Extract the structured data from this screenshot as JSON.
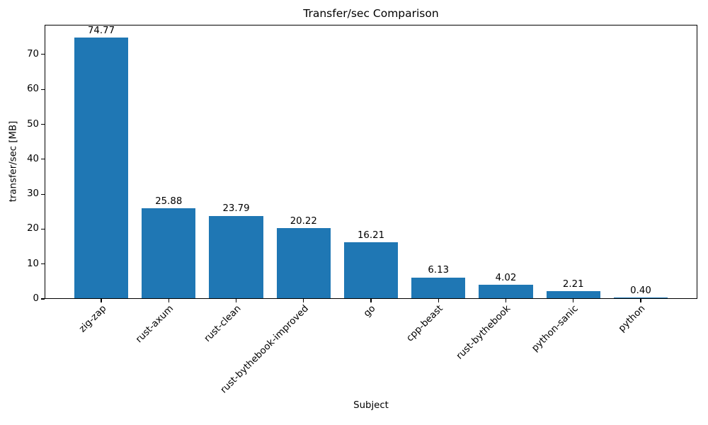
{
  "chart_data": {
    "type": "bar",
    "title": "Transfer/sec Comparison",
    "xlabel": "Subject",
    "ylabel": "transfer/sec [MB]",
    "categories": [
      "zig-zap",
      "rust-axum",
      "rust-clean",
      "rust-bythebook-improved",
      "go",
      "cpp-beast",
      "rust-bythebook",
      "python-sanic",
      "python"
    ],
    "values": [
      74.77,
      25.88,
      23.79,
      20.22,
      16.21,
      6.13,
      4.02,
      2.21,
      0.4
    ],
    "value_labels": [
      "74.77",
      "25.88",
      "23.79",
      "20.22",
      "16.21",
      "6.13",
      "4.02",
      "2.21",
      "0.40"
    ],
    "yticks": [
      0,
      10,
      20,
      30,
      40,
      50,
      60,
      70
    ],
    "ylim": [
      0,
      78.5
    ],
    "x_tick_rotation_deg": 45,
    "grid": false,
    "legend": false,
    "bar_color": "#1f77b4",
    "text_color": "#000000",
    "background_color": "#ffffff"
  }
}
